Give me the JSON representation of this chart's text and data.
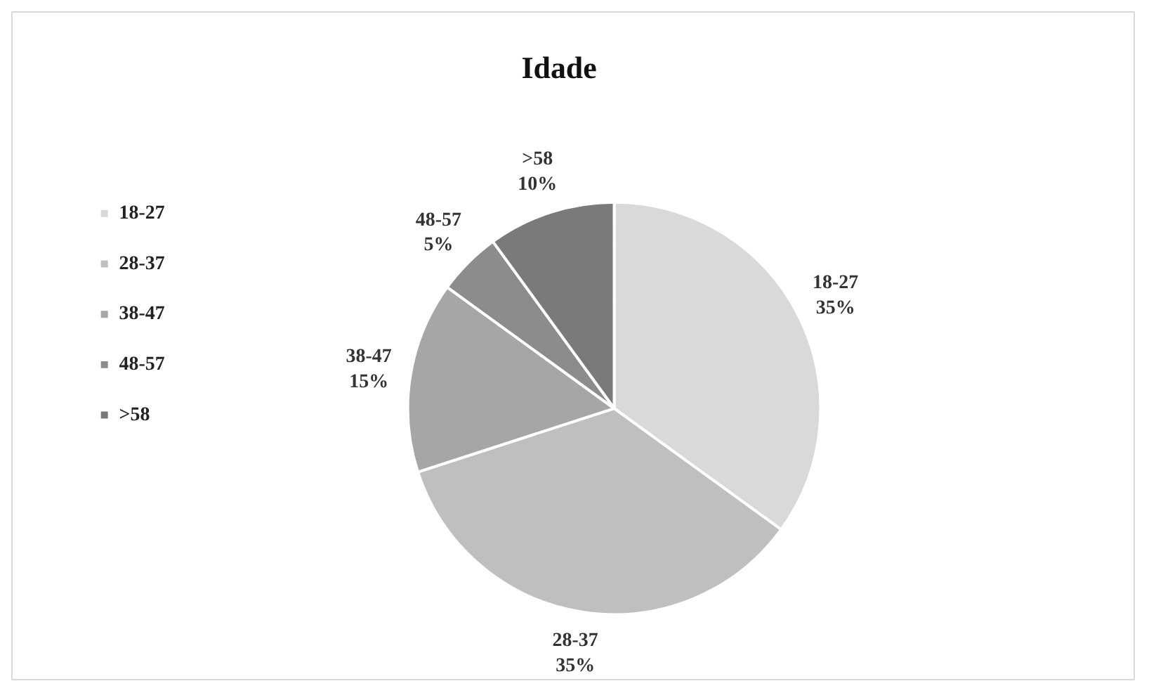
{
  "chart_data": {
    "type": "pie",
    "title": "Idade",
    "categories": [
      "18-27",
      "28-37",
      "38-47",
      "48-57",
      ">58"
    ],
    "values": [
      35,
      35,
      15,
      5,
      10
    ],
    "colors": [
      "#d9d9d9",
      "#bfbfbf",
      "#a6a6a6",
      "#8c8c8c",
      "#7a7a7a"
    ],
    "value_labels": [
      "35%",
      "35%",
      "15%",
      "5%",
      "10%"
    ],
    "legend": "left"
  }
}
